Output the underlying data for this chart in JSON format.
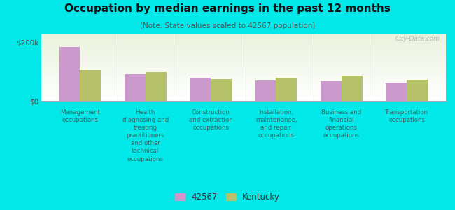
{
  "title": "Occupation by median earnings in the past 12 months",
  "subtitle": "(Note: State values scaled to 42567 population)",
  "background_color": "#00e8e8",
  "plot_bg_top": "#eaf2dc",
  "plot_bg_bottom": "#ffffff",
  "categories": [
    "Management\noccupations",
    "Health\ndiagnosing and\ntreating\npractitioners\nand other\ntechnical\noccupations",
    "Construction\nand extraction\noccupations",
    "Installation,\nmaintenance,\nand repair\noccupations",
    "Business and\nfinancial\noperations\noccupations",
    "Transportation\noccupations"
  ],
  "values_42567": [
    185000,
    92000,
    78000,
    70000,
    68000,
    63000
  ],
  "values_kentucky": [
    105000,
    98000,
    74000,
    80000,
    87000,
    72000
  ],
  "color_42567": "#cc99cc",
  "color_kentucky": "#b5c26a",
  "ylabel_values": [
    "$0",
    "$200k"
  ],
  "yticks": [
    0,
    200000
  ],
  "ylim": [
    0,
    230000
  ],
  "legend_label_1": "42567",
  "legend_label_2": "Kentucky",
  "watermark": "City-Data.com",
  "title_color": "#111111",
  "subtitle_color": "#555555",
  "label_color": "#336666"
}
